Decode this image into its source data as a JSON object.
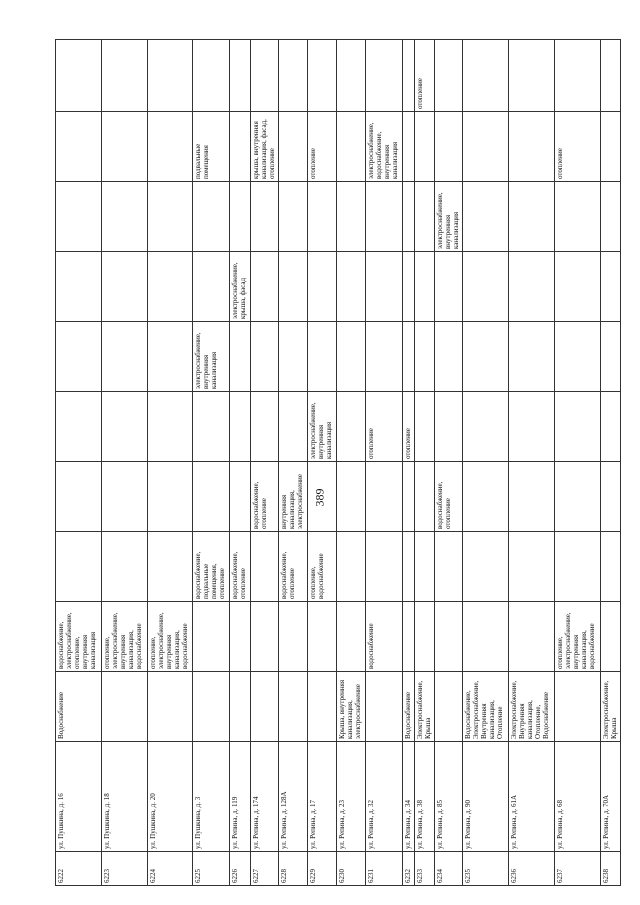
{
  "page_number": "389",
  "rows": [
    {
      "id": "6222",
      "address": "ул. Пушкина, д. 16",
      "c1": "Водоснабжение",
      "c2": "водоснабжение, электроснабжение, отопление, внутренняя канализация",
      "c3": "",
      "c4": "",
      "c5": "",
      "c6": "",
      "c7": "",
      "c8": "",
      "c9": "",
      "c10": ""
    },
    {
      "id": "6223",
      "address": "ул. Пушкина, д. 18",
      "c1": "",
      "c2": "отопление, электроснабжение, внутренняя канализация, водоснабжение",
      "c3": "",
      "c4": "",
      "c5": "",
      "c6": "",
      "c7": "",
      "c8": "",
      "c9": "",
      "c10": ""
    },
    {
      "id": "6224",
      "address": "ул. Пушкина, д. 20",
      "c1": "",
      "c2": "отопление, электроснабжение, внутренняя канализация, водоснабжение",
      "c3": "",
      "c4": "",
      "c5": "",
      "c6": "",
      "c7": "",
      "c8": "",
      "c9": "",
      "c10": ""
    },
    {
      "id": "6225",
      "address": "ул. Пушкина, д. 3",
      "c1": "",
      "c2": "",
      "c3": "водоснабжение, подвальные помещения, отопление",
      "c4": "",
      "c5": "",
      "c6": "электроснабжение, внутренняя канализация",
      "c7": "",
      "c8": "",
      "c9": "подвальные помещения",
      "c10": ""
    },
    {
      "id": "6226",
      "address": "ул. Репина, д. 119",
      "c1": "",
      "c2": "",
      "c3": "водоснабжение, отопление",
      "c4": "",
      "c5": "",
      "c6": "",
      "c7": "электроснабжение, крыша, фасад",
      "c8": "",
      "c9": "",
      "c10": ""
    },
    {
      "id": "6227",
      "address": "ул. Репина, д. 174",
      "c1": "",
      "c2": "",
      "c3": "",
      "c4": "водоснабжение, отопление",
      "c5": "",
      "c6": "",
      "c7": "",
      "c8": "",
      "c9": "крыша, внутренняя канализация, фасад, отопление",
      "c10": ""
    },
    {
      "id": "6228",
      "address": "ул. Репина, д. 128А",
      "c1": "",
      "c2": "",
      "c3": "водоснабжение, отопление",
      "c4": "внутренняя канализация, электроснабжение",
      "c5": "",
      "c6": "",
      "c7": "",
      "c8": "",
      "c9": "",
      "c10": ""
    },
    {
      "id": "6229",
      "address": "ул. Репина, д. 17",
      "c1": "",
      "c2": "",
      "c3": "отопление, водоснабжение",
      "c4": "",
      "c5": "электроснабжение, внутренняя канализация",
      "c6": "",
      "c7": "",
      "c8": "",
      "c9": "отопление",
      "c10": ""
    },
    {
      "id": "6230",
      "address": "ул. Репина, д. 23",
      "c1": "Крыша, внутренняя канализация, электроснабжение",
      "c2": "",
      "c3": "",
      "c4": "",
      "c5": "",
      "c6": "",
      "c7": "",
      "c8": "",
      "c9": "",
      "c10": ""
    },
    {
      "id": "6231",
      "address": "ул. Репина, д. 32",
      "c1": "",
      "c2": "водоснабжение",
      "c3": "",
      "c4": "",
      "c5": "отопление",
      "c6": "",
      "c7": "",
      "c8": "",
      "c9": "электроснабжение, водоснабжение, внутренняя канализация",
      "c10": ""
    },
    {
      "id": "6232",
      "address": "ул. Репина, д. 34",
      "c1": "Водоснабжение",
      "c2": "",
      "c3": "",
      "c4": "",
      "c5": "отопление",
      "c6": "",
      "c7": "",
      "c8": "",
      "c9": "",
      "c10": ""
    },
    {
      "id": "6233",
      "address": "ул. Репина, д. 38",
      "c1": "Электроснабжение, Крыша",
      "c2": "",
      "c3": "",
      "c4": "",
      "c5": "",
      "c6": "",
      "c7": "",
      "c8": "",
      "c9": "",
      "c10": "отопление"
    },
    {
      "id": "6234",
      "address": "ул. Репина, д. 85",
      "c1": "",
      "c2": "",
      "c3": "",
      "c4": "водоснабжение, отопление",
      "c5": "",
      "c6": "",
      "c7": "",
      "c8": "электроснабжение, внутренняя канализация",
      "c9": "",
      "c10": ""
    },
    {
      "id": "6235",
      "address": "ул. Репина, д. 90",
      "c1": "Водоснабжение, Электроснабжение, Внутренняя канализация, Отопление",
      "c2": "",
      "c3": "",
      "c4": "",
      "c5": "",
      "c6": "",
      "c7": "",
      "c8": "",
      "c9": "",
      "c10": ""
    },
    {
      "id": "6236",
      "address": "ул. Репина, д. 61А",
      "c1": "Электроснабжение, Внутренняя канализация, Отопление, Водоснабжение",
      "c2": "",
      "c3": "",
      "c4": "",
      "c5": "",
      "c6": "",
      "c7": "",
      "c8": "",
      "c9": "",
      "c10": ""
    },
    {
      "id": "6237",
      "address": "ул. Репина, д. 68",
      "c1": "",
      "c2": "отопление, электроснабжение, внутренняя канализация, водоснабжение",
      "c3": "",
      "c4": "",
      "c5": "",
      "c6": "",
      "c7": "",
      "c8": "",
      "c9": "отопление",
      "c10": ""
    },
    {
      "id": "6238",
      "address": "ул. Репина, д. 70А",
      "c1": "Электроснабжение, Крыша",
      "c2": "",
      "c3": "",
      "c4": "",
      "c5": "",
      "c6": "",
      "c7": "",
      "c8": "",
      "c9": "",
      "c10": ""
    }
  ]
}
